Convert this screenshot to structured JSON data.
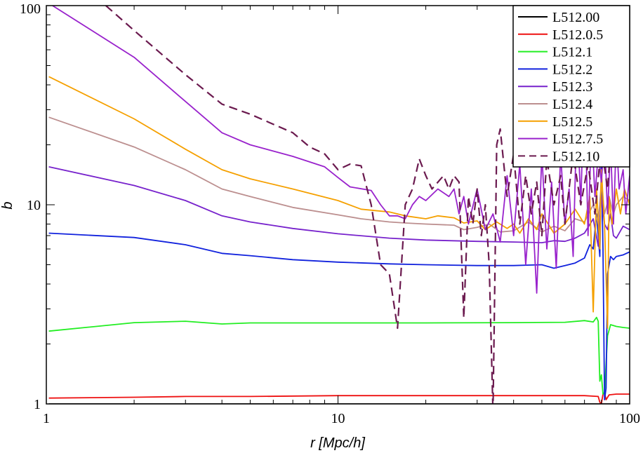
{
  "chart_data": {
    "type": "line",
    "xscale": "log",
    "yscale": "log",
    "xlim": [
      1,
      100
    ],
    "ylim": [
      1,
      100
    ],
    "xlabel": "r [Mpc/h]",
    "ylabel": "b",
    "xticks": [
      1,
      10,
      100
    ],
    "xtick_labels": [
      "1",
      "10",
      "100"
    ],
    "yticks": [
      1,
      10,
      100
    ],
    "ytick_labels": [
      "1",
      "10",
      "100"
    ],
    "grid": false,
    "legend_position": "top-right",
    "series": [
      {
        "name": "L512.00",
        "color": "#000000",
        "dashed": false,
        "points": [
          [
            1.02,
            1.0
          ],
          [
            100,
            1.0
          ]
        ]
      },
      {
        "name": "L512.0.5",
        "color": "#ee1111",
        "dashed": false,
        "points": [
          [
            1.02,
            1.07
          ],
          [
            2,
            1.08
          ],
          [
            3,
            1.09
          ],
          [
            5,
            1.09
          ],
          [
            10,
            1.1
          ],
          [
            20,
            1.1
          ],
          [
            40,
            1.1
          ],
          [
            70,
            1.1
          ],
          [
            78,
            1.09
          ],
          [
            79,
            1.02
          ],
          [
            80,
            1.0
          ],
          [
            81,
            1.12
          ],
          [
            82,
            1.14
          ],
          [
            83,
            1.05
          ],
          [
            85,
            1.11
          ],
          [
            90,
            1.12
          ],
          [
            100,
            1.12
          ]
        ]
      },
      {
        "name": "L512.1",
        "color": "#22ee22",
        "dashed": false,
        "points": [
          [
            1.02,
            2.32
          ],
          [
            2,
            2.56
          ],
          [
            3,
            2.6
          ],
          [
            4,
            2.52
          ],
          [
            5,
            2.55
          ],
          [
            10,
            2.55
          ],
          [
            20,
            2.55
          ],
          [
            40,
            2.56
          ],
          [
            60,
            2.57
          ],
          [
            70,
            2.62
          ],
          [
            75,
            2.58
          ],
          [
            77,
            2.72
          ],
          [
            78,
            2.6
          ],
          [
            79,
            1.3
          ],
          [
            80,
            1.4
          ],
          [
            81,
            1.12
          ],
          [
            82,
            1.14
          ],
          [
            84,
            2.2
          ],
          [
            86,
            2.5
          ],
          [
            90,
            2.45
          ],
          [
            95,
            2.42
          ],
          [
            100,
            2.4
          ]
        ]
      },
      {
        "name": "L512.2",
        "color": "#1122dd",
        "dashed": false,
        "points": [
          [
            1.02,
            7.2
          ],
          [
            2,
            6.85
          ],
          [
            3,
            6.3
          ],
          [
            4,
            5.7
          ],
          [
            5,
            5.55
          ],
          [
            7,
            5.3
          ],
          [
            10,
            5.15
          ],
          [
            15,
            5.05
          ],
          [
            20,
            5.0
          ],
          [
            30,
            4.95
          ],
          [
            40,
            4.95
          ],
          [
            50,
            5.0
          ],
          [
            55,
            4.8
          ],
          [
            60,
            4.95
          ],
          [
            65,
            5.1
          ],
          [
            70,
            5.4
          ],
          [
            73,
            6.3
          ],
          [
            75,
            6.0
          ],
          [
            77,
            9.0
          ],
          [
            79,
            5.5
          ],
          [
            80,
            16
          ],
          [
            81,
            6
          ],
          [
            82,
            1.05
          ],
          [
            83,
            1.2
          ],
          [
            84,
            4.5
          ],
          [
            86,
            5.5
          ],
          [
            88,
            5.3
          ],
          [
            90,
            5.5
          ],
          [
            95,
            5.6
          ],
          [
            100,
            5.8
          ]
        ]
      },
      {
        "name": "L512.3",
        "color": "#7722cc",
        "dashed": false,
        "points": [
          [
            1.02,
            15.5
          ],
          [
            2,
            12.5
          ],
          [
            3,
            10.5
          ],
          [
            4,
            8.8
          ],
          [
            5,
            8.2
          ],
          [
            7,
            7.6
          ],
          [
            10,
            7.15
          ],
          [
            15,
            6.8
          ],
          [
            20,
            6.65
          ],
          [
            30,
            6.55
          ],
          [
            40,
            6.5
          ],
          [
            50,
            6.45
          ],
          [
            55,
            6.6
          ],
          [
            60,
            6.55
          ],
          [
            65,
            6.8
          ],
          [
            70,
            7.2
          ],
          [
            75,
            8.5
          ],
          [
            78,
            6.2
          ],
          [
            80,
            11
          ],
          [
            82,
            8
          ],
          [
            84,
            7.5
          ],
          [
            86,
            9
          ],
          [
            88,
            7
          ],
          [
            90,
            6.8
          ],
          [
            95,
            7.8
          ],
          [
            100,
            7.5
          ]
        ]
      },
      {
        "name": "L512.4",
        "color": "#bc8f8f",
        "dashed": false,
        "points": [
          [
            1.02,
            27.5
          ],
          [
            2,
            19.5
          ],
          [
            3,
            15
          ],
          [
            4,
            12
          ],
          [
            5,
            11
          ],
          [
            7,
            9.7
          ],
          [
            10,
            8.9
          ],
          [
            12,
            8.5
          ],
          [
            15,
            8.2
          ],
          [
            17,
            8.1
          ],
          [
            20,
            8.0
          ],
          [
            25,
            7.9
          ],
          [
            27,
            7.5
          ],
          [
            30,
            7.7
          ],
          [
            33,
            8.0
          ],
          [
            36,
            7.3
          ],
          [
            40,
            7.4
          ],
          [
            45,
            8.2
          ],
          [
            50,
            7.3
          ],
          [
            55,
            7.8
          ],
          [
            60,
            7.4
          ],
          [
            65,
            8.5
          ],
          [
            70,
            8.2
          ],
          [
            75,
            10
          ],
          [
            78,
            8
          ],
          [
            80,
            13
          ],
          [
            82,
            9
          ],
          [
            85,
            11
          ],
          [
            88,
            9
          ],
          [
            90,
            10
          ],
          [
            95,
            11
          ],
          [
            100,
            10.5
          ]
        ]
      },
      {
        "name": "L512.5",
        "color": "#f5a000",
        "dashed": false,
        "points": [
          [
            1.02,
            44
          ],
          [
            2,
            27
          ],
          [
            3,
            19
          ],
          [
            4,
            15
          ],
          [
            5,
            13.5
          ],
          [
            7,
            12
          ],
          [
            10,
            10.5
          ],
          [
            12,
            9.5
          ],
          [
            15,
            9.2
          ],
          [
            17,
            8.8
          ],
          [
            20,
            8.5
          ],
          [
            22,
            8.8
          ],
          [
            25,
            8.6
          ],
          [
            27,
            8.1
          ],
          [
            30,
            8.3
          ],
          [
            32,
            7.5
          ],
          [
            35,
            8.2
          ],
          [
            38,
            7.6
          ],
          [
            40,
            8.0
          ],
          [
            42,
            7.2
          ],
          [
            45,
            8.5
          ],
          [
            48,
            7.5
          ],
          [
            50,
            9.0
          ],
          [
            55,
            7.2
          ],
          [
            60,
            8.0
          ],
          [
            65,
            9.5
          ],
          [
            70,
            8.0
          ],
          [
            73,
            11
          ],
          [
            75,
            2.9
          ],
          [
            77,
            12
          ],
          [
            79,
            6
          ],
          [
            80,
            15
          ],
          [
            82,
            8
          ],
          [
            84,
            2.4
          ],
          [
            85,
            11
          ],
          [
            87,
            8
          ],
          [
            90,
            12
          ],
          [
            93,
            9
          ],
          [
            96,
            12
          ],
          [
            100,
            10
          ]
        ]
      },
      {
        "name": "L512.7.5",
        "color": "#9922cc",
        "dashed": false,
        "points": [
          [
            1.05,
            100
          ],
          [
            2,
            55
          ],
          [
            3,
            33
          ],
          [
            4,
            23
          ],
          [
            5,
            20
          ],
          [
            7,
            17.5
          ],
          [
            9,
            15.5
          ],
          [
            10,
            13.7
          ],
          [
            11,
            12.3
          ],
          [
            13,
            11.8
          ],
          [
            14,
            10
          ],
          [
            15,
            8.8
          ],
          [
            16,
            8.8
          ],
          [
            17,
            8.5
          ],
          [
            18,
            10
          ],
          [
            19,
            11
          ],
          [
            20,
            10.5
          ],
          [
            22,
            12
          ],
          [
            24,
            11
          ],
          [
            25,
            12
          ],
          [
            26,
            9
          ],
          [
            27,
            11
          ],
          [
            28,
            8
          ],
          [
            30,
            12
          ],
          [
            32,
            7.5
          ],
          [
            34,
            9
          ],
          [
            36,
            6.5
          ],
          [
            38,
            14
          ],
          [
            40,
            7
          ],
          [
            42,
            16
          ],
          [
            44,
            5
          ],
          [
            46,
            12
          ],
          [
            48,
            3.6
          ],
          [
            50,
            18
          ],
          [
            52,
            6
          ],
          [
            54,
            13
          ],
          [
            56,
            4.8
          ],
          [
            58,
            18
          ],
          [
            60,
            8
          ],
          [
            62,
            12
          ],
          [
            64,
            5.5
          ],
          [
            66,
            30
          ],
          [
            68,
            10
          ],
          [
            70,
            45
          ],
          [
            72,
            7
          ],
          [
            74,
            25
          ],
          [
            76,
            11
          ],
          [
            78,
            18
          ],
          [
            80,
            13
          ],
          [
            82,
            22
          ],
          [
            84,
            9
          ],
          [
            86,
            20
          ],
          [
            88,
            8
          ],
          [
            90,
            22
          ],
          [
            92,
            12
          ],
          [
            95,
            15
          ],
          [
            97,
            9
          ],
          [
            100,
            14
          ]
        ]
      },
      {
        "name": "L512.10",
        "color": "#6b1a4f",
        "dashed": true,
        "points": [
          [
            1.6,
            100
          ],
          [
            2,
            75
          ],
          [
            3,
            45
          ],
          [
            4,
            32
          ],
          [
            5,
            28.5
          ],
          [
            7,
            23
          ],
          [
            8,
            19.5
          ],
          [
            9,
            18
          ],
          [
            10,
            15
          ],
          [
            11,
            16
          ],
          [
            12,
            15.7
          ],
          [
            13,
            10
          ],
          [
            13.5,
            7
          ],
          [
            14,
            5.0
          ],
          [
            15,
            4.5
          ],
          [
            16,
            2.4
          ],
          [
            17,
            10
          ],
          [
            18,
            12
          ],
          [
            19,
            17
          ],
          [
            20,
            14
          ],
          [
            21,
            12
          ],
          [
            23,
            14
          ],
          [
            24,
            12
          ],
          [
            25,
            14
          ],
          [
            26,
            13
          ],
          [
            27,
            2.7
          ],
          [
            28,
            11
          ],
          [
            29,
            8
          ],
          [
            30,
            12
          ],
          [
            31,
            7
          ],
          [
            32,
            10
          ],
          [
            33,
            5
          ],
          [
            34,
            0.9
          ],
          [
            35,
            20
          ],
          [
            36,
            24
          ],
          [
            38,
            11
          ],
          [
            40,
            18
          ],
          [
            42,
            8
          ],
          [
            44,
            14
          ],
          [
            46,
            9
          ],
          [
            48,
            13
          ],
          [
            50,
            7
          ],
          [
            52,
            17
          ],
          [
            55,
            10
          ],
          [
            58,
            14
          ],
          [
            60,
            8
          ],
          [
            64,
            18
          ],
          [
            68,
            10
          ],
          [
            72,
            16
          ],
          [
            76,
            9
          ],
          [
            80,
            20
          ],
          [
            84,
            12
          ],
          [
            88,
            30
          ],
          [
            92,
            25
          ],
          [
            96,
            40
          ],
          [
            100,
            35
          ]
        ]
      }
    ]
  }
}
